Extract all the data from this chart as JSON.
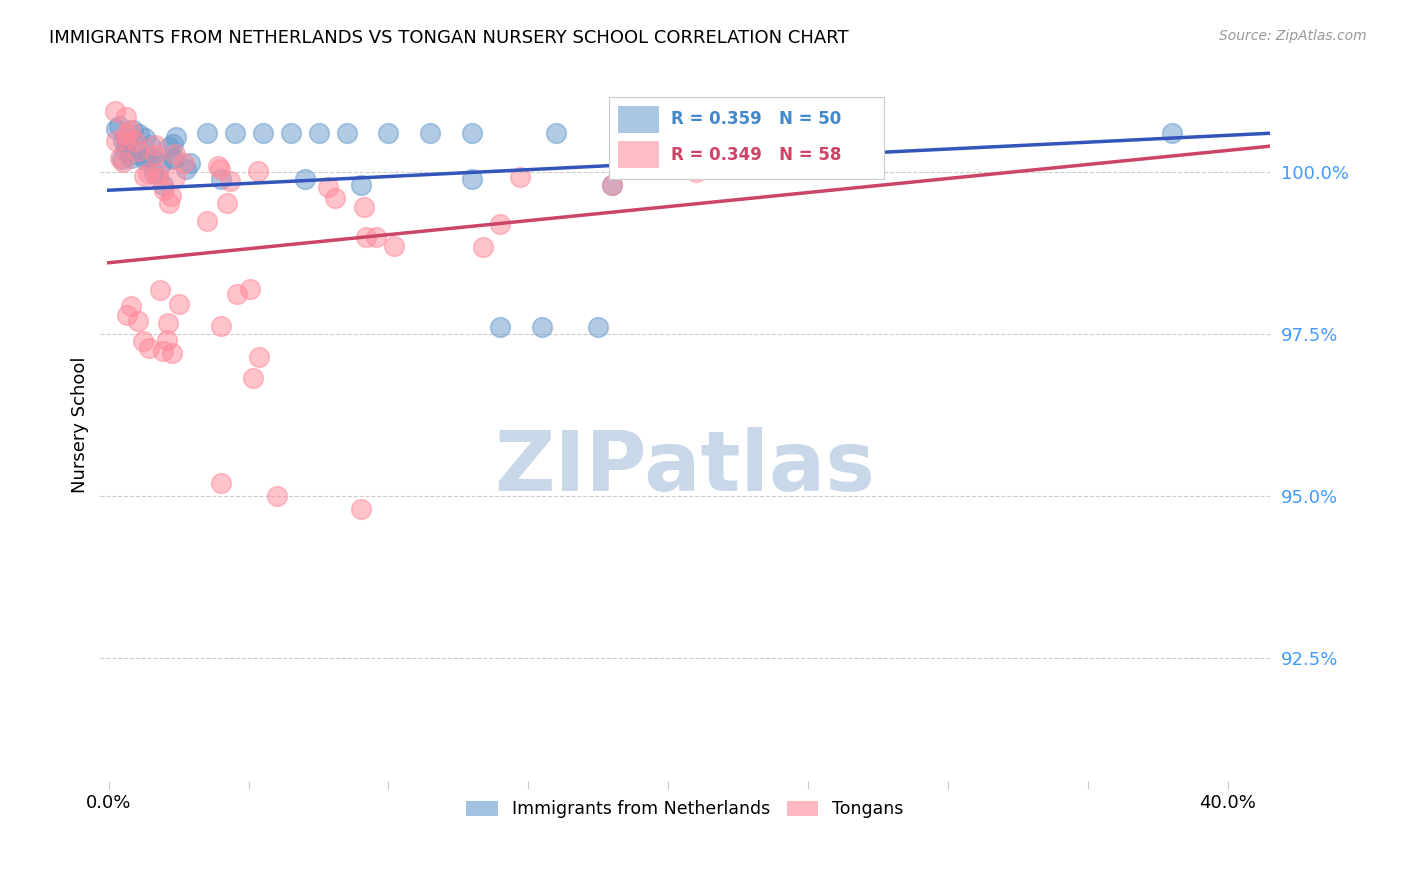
{
  "title": "IMMIGRANTS FROM NETHERLANDS VS TONGAN NURSERY SCHOOL CORRELATION CHART",
  "source": "Source: ZipAtlas.com",
  "ylabel": "Nursery School",
  "ytick_labels": [
    "100.0%",
    "97.5%",
    "95.0%",
    "92.5%"
  ],
  "ytick_values": [
    1.0,
    0.975,
    0.95,
    0.925
  ],
  "xlim": [
    -0.003,
    0.415
  ],
  "ylim": [
    0.906,
    1.016
  ],
  "legend_blue_label": "Immigrants from Netherlands",
  "legend_pink_label": "Tongans",
  "legend_r_blue": "R = 0.359",
  "legend_n_blue": "N = 50",
  "legend_r_pink": "R = 0.349",
  "legend_n_pink": "N = 58",
  "blue_color": "#6699CC",
  "pink_color": "#FF8899",
  "trend_blue_color": "#3355BB",
  "trend_pink_color": "#CC4466",
  "watermark": "ZIPatlas",
  "watermark_color": "#C8D8E8",
  "trend_blue_x0": 0.0,
  "trend_blue_y0": 0.9972,
  "trend_blue_x1": 0.415,
  "trend_blue_y1": 1.006,
  "trend_pink_x0": 0.0,
  "trend_pink_y0": 0.986,
  "trend_pink_x1": 0.415,
  "trend_pink_y1": 1.004
}
